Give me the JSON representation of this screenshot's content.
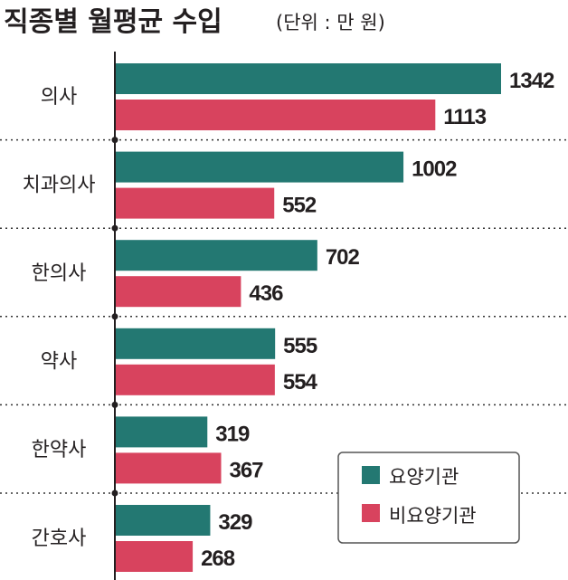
{
  "chart_data": {
    "type": "bar",
    "orientation": "horizontal",
    "title": "직종별 월평균 수입",
    "unit_label": "(단위 : 만 원)",
    "categories": [
      "의사",
      "치과의사",
      "한의사",
      "약사",
      "한약사",
      "간호사"
    ],
    "series": [
      {
        "name": "요양기관",
        "color": "#237872",
        "values": [
          1342,
          1002,
          702,
          555,
          319,
          329
        ]
      },
      {
        "name": "비요양기관",
        "color": "#d8435e",
        "values": [
          1113,
          552,
          436,
          554,
          367,
          268
        ]
      }
    ],
    "xlim": [
      0,
      1342
    ],
    "legend_position": "bottom-right",
    "grid": false
  }
}
